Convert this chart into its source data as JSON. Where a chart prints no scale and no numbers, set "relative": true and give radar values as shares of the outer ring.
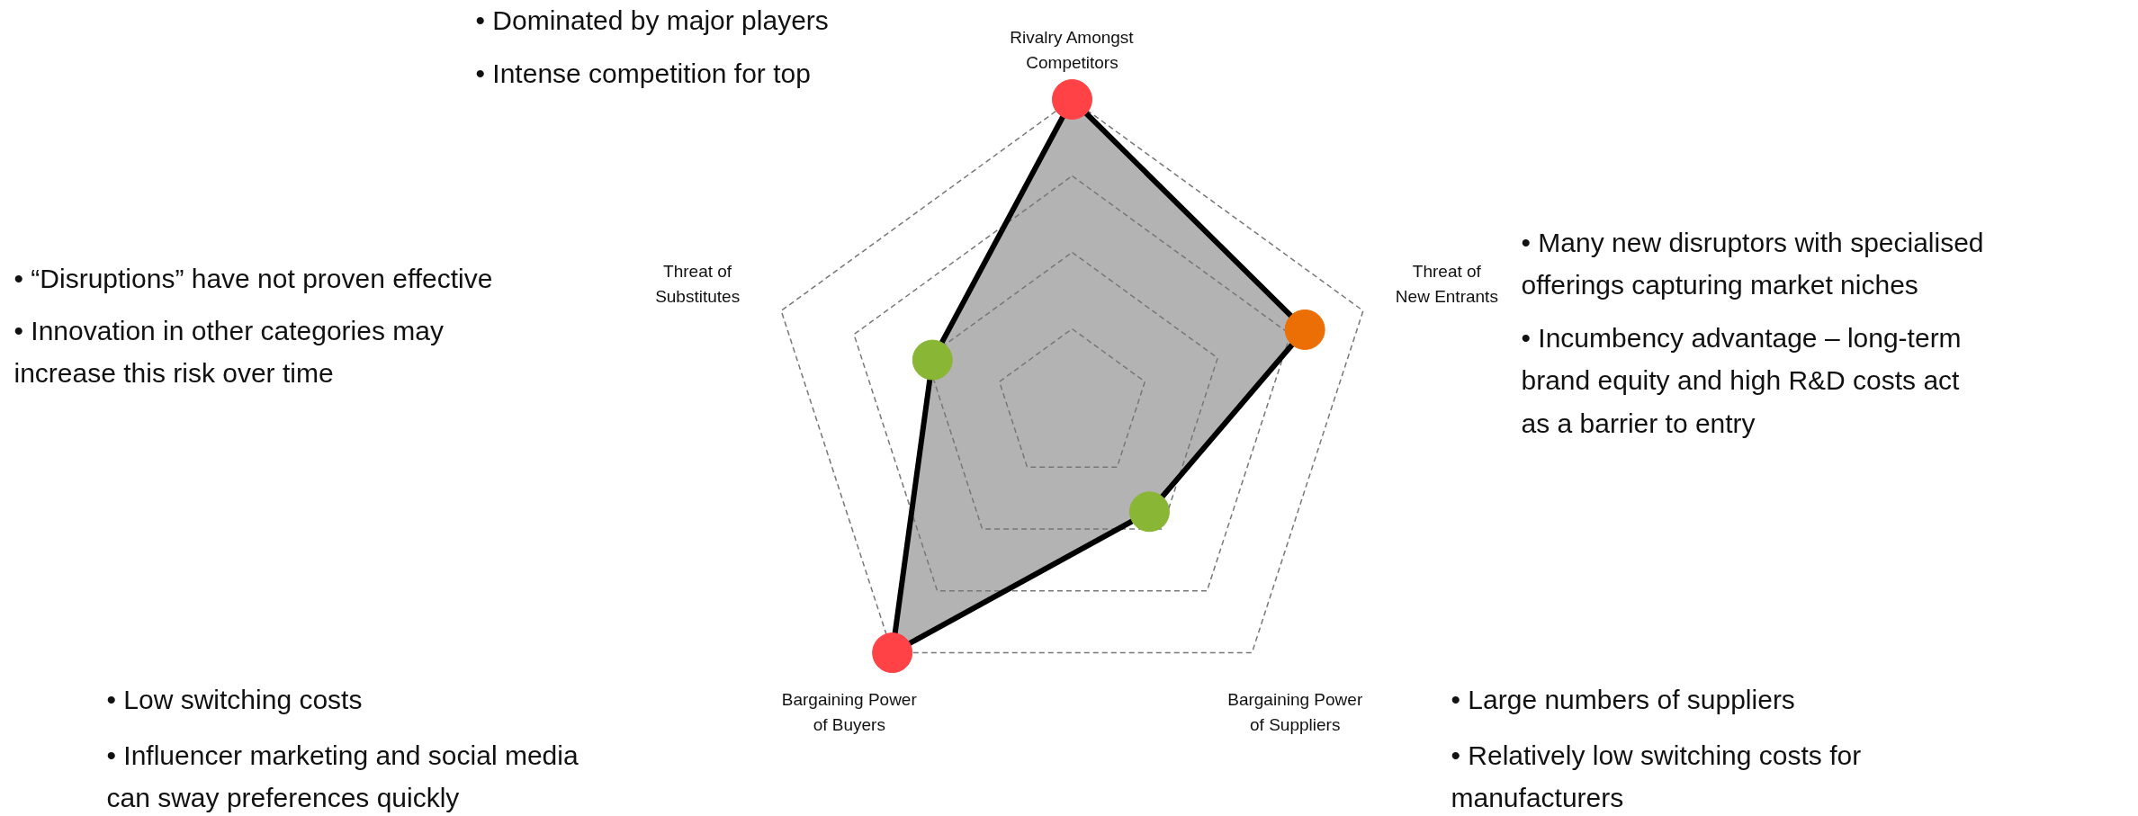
{
  "chart_data": {
    "type": "radar",
    "relative": true,
    "grid": true,
    "marker": "circle",
    "line_style": "solid",
    "categories": [
      "Rivalry Amongst\nCompetitors",
      "Threat of\nNew Entrants",
      "Bargaining Power\nof Suppliers",
      "Bargaining Power\nof Buyers",
      "Threat of\nSubstitutes"
    ],
    "series": [
      {
        "color": "#000000",
        "colors": [
          "#ff4245",
          "#ec6f06",
          "#89b735",
          "#ff4245",
          "#89b735"
        ],
        "values": [
          1,
          0.8,
          0.43,
          1,
          0.48
        ]
      }
    ],
    "annotations": [
      "• Dominated by major players",
      "• Intense competition for top",
      "• “Disruptions” have not proven effective",
      "• Innovation in other categories may\n   increase this risk over time",
      "• Many new disruptors with specialised\n   offerings capturing market niches",
      "• Incumbency advantage – long-term\n   brand equity and high R&D costs act\n   as a barrier to entry",
      "• Low switching costs",
      "• Influencer marketing and social media\n   can sway preferences quickly",
      "• Large numbers of suppliers",
      "• Relatively low switching costs for\n   manufacturers"
    ]
  }
}
